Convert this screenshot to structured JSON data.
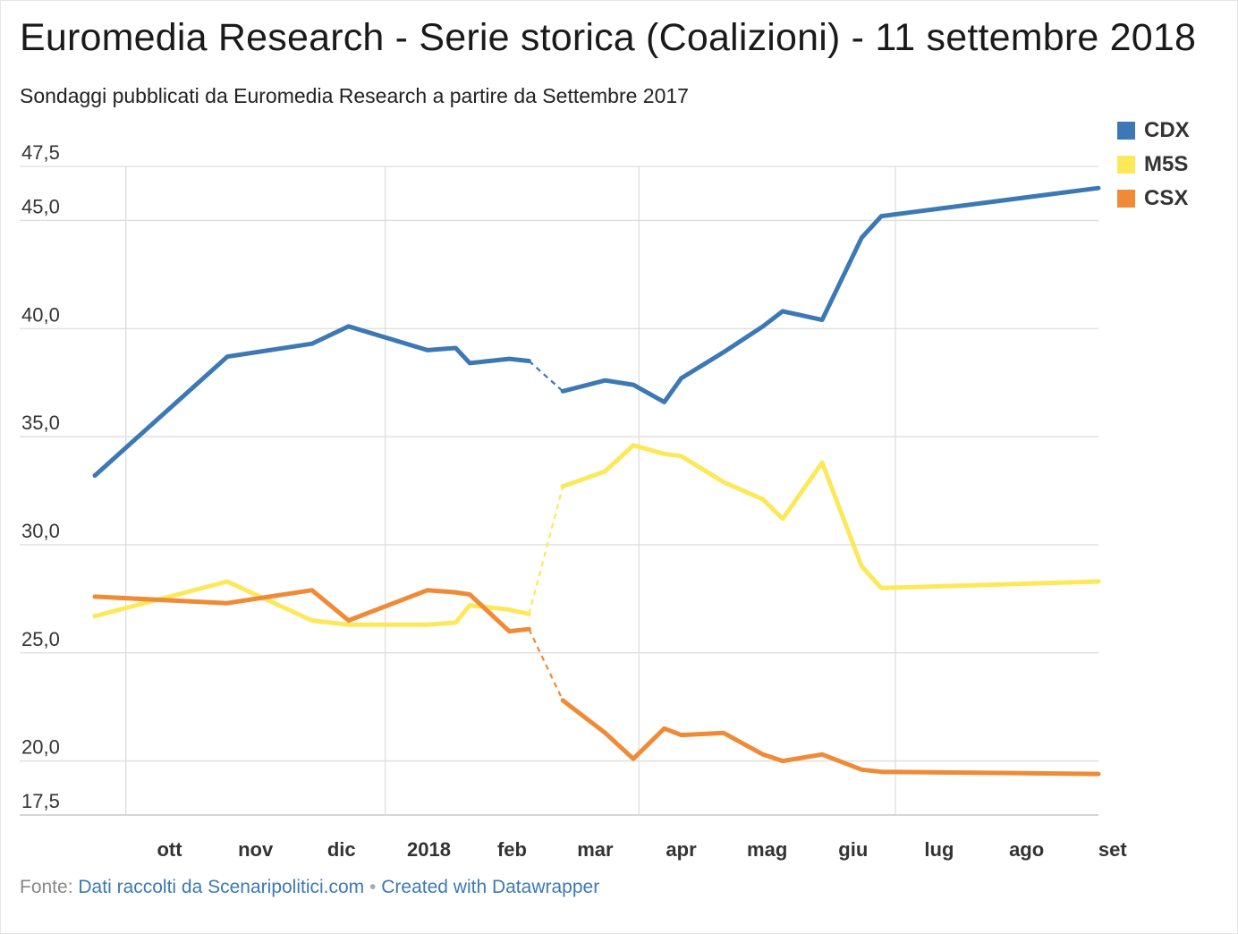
{
  "title": "Euromedia Research - Serie storica (Coalizioni) - 11 settembre 2018",
  "subtitle": "Sondaggi pubblicati da Euromedia Research a partire da Settembre 2017",
  "footer": {
    "source_prefix": "Fonte:",
    "source_link": "Dati raccolti da Scenaripolitici.com",
    "separator": "•",
    "credit_link": "Created with Datawrapper"
  },
  "chart_data": {
    "type": "line",
    "title": "Euromedia Research - Serie storica (Coalizioni) - 11 settembre 2018",
    "ylim": [
      17.5,
      47.5
    ],
    "y_ticks": [
      "47,5",
      "45,0",
      "40,0",
      "35,0",
      "30,0",
      "25,0",
      "20,0",
      "17,5"
    ],
    "y_tick_values": [
      47.5,
      45,
      40,
      35,
      30,
      25,
      20,
      17.5
    ],
    "x_ticks": [
      "ott",
      "nov",
      "dic",
      "2018",
      "feb",
      "mar",
      "apr",
      "mag",
      "giu",
      "lug",
      "ago",
      "set"
    ],
    "x_tick_dates": [
      "2017-10-01",
      "2017-11-01",
      "2017-12-01",
      "2018-01-01",
      "2018-02-01",
      "2018-03-01",
      "2018-04-01",
      "2018-05-01",
      "2018-06-01",
      "2018-07-01",
      "2018-08-01",
      "2018-09-01"
    ],
    "x_gridlines": [
      "2017-10-01",
      "2018-01-01",
      "2018-04-01",
      "2018-07-01"
    ],
    "gap_note": "dashed segment between 2018-02-21 and 2018-03-05",
    "legend_position": "top-right",
    "grid": true,
    "series": [
      {
        "name": "CDX",
        "color": "#3c79b4",
        "points": [
          [
            "2017-09-20",
            33.2
          ],
          [
            "2017-11-06",
            38.7
          ],
          [
            "2017-12-06",
            39.3
          ],
          [
            "2017-12-19",
            40.1
          ],
          [
            "2018-01-16",
            39.0
          ],
          [
            "2018-01-26",
            39.1
          ],
          [
            "2018-01-31",
            38.4
          ],
          [
            "2018-02-14",
            38.6
          ],
          [
            "2018-02-21",
            38.5
          ],
          [
            "2018-03-05",
            37.1
          ],
          [
            "2018-03-20",
            37.6
          ],
          [
            "2018-03-30",
            37.4
          ],
          [
            "2018-04-10",
            36.6
          ],
          [
            "2018-04-16",
            37.7
          ],
          [
            "2018-05-01",
            38.9
          ],
          [
            "2018-05-15",
            40.1
          ],
          [
            "2018-05-22",
            40.8
          ],
          [
            "2018-06-05",
            40.4
          ],
          [
            "2018-06-19",
            44.2
          ],
          [
            "2018-06-26",
            45.2
          ],
          [
            "2018-09-11",
            46.5
          ]
        ]
      },
      {
        "name": "M5S",
        "color": "#fde85a",
        "points": [
          [
            "2017-09-20",
            26.7
          ],
          [
            "2017-11-06",
            28.3
          ],
          [
            "2017-12-06",
            26.5
          ],
          [
            "2017-12-19",
            26.3
          ],
          [
            "2018-01-16",
            26.3
          ],
          [
            "2018-01-26",
            26.4
          ],
          [
            "2018-01-31",
            27.2
          ],
          [
            "2018-02-14",
            27.0
          ],
          [
            "2018-02-21",
            26.8
          ],
          [
            "2018-03-05",
            32.7
          ],
          [
            "2018-03-20",
            33.4
          ],
          [
            "2018-03-30",
            34.6
          ],
          [
            "2018-04-10",
            34.2
          ],
          [
            "2018-04-16",
            34.1
          ],
          [
            "2018-05-01",
            32.9
          ],
          [
            "2018-05-15",
            32.1
          ],
          [
            "2018-05-22",
            31.2
          ],
          [
            "2018-06-05",
            33.8
          ],
          [
            "2018-06-19",
            29.0
          ],
          [
            "2018-06-26",
            28.0
          ],
          [
            "2018-09-11",
            28.3
          ]
        ]
      },
      {
        "name": "CSX",
        "color": "#ef8a36",
        "points": [
          [
            "2017-09-20",
            27.6
          ],
          [
            "2017-11-06",
            27.3
          ],
          [
            "2017-12-06",
            27.9
          ],
          [
            "2017-12-19",
            26.5
          ],
          [
            "2018-01-16",
            27.9
          ],
          [
            "2018-01-26",
            27.8
          ],
          [
            "2018-01-31",
            27.7
          ],
          [
            "2018-02-14",
            26.0
          ],
          [
            "2018-02-21",
            26.1
          ],
          [
            "2018-03-05",
            22.8
          ],
          [
            "2018-03-20",
            21.3
          ],
          [
            "2018-03-30",
            20.1
          ],
          [
            "2018-04-10",
            21.5
          ],
          [
            "2018-04-16",
            21.2
          ],
          [
            "2018-05-01",
            21.3
          ],
          [
            "2018-05-15",
            20.3
          ],
          [
            "2018-05-22",
            20.0
          ],
          [
            "2018-06-05",
            20.3
          ],
          [
            "2018-06-19",
            19.6
          ],
          [
            "2018-06-26",
            19.5
          ],
          [
            "2018-09-11",
            19.4
          ]
        ]
      }
    ]
  }
}
